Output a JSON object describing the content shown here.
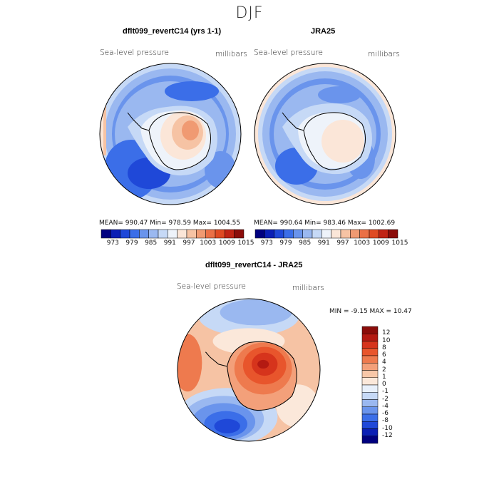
{
  "season_title": "DJF",
  "panels": [
    {
      "title": "dflt099_revertC14 (yrs 1-1)",
      "variable": "Sea-level pressure",
      "units": "millibars",
      "stats": {
        "mean": "990.47",
        "min": "978.59",
        "max": "1004.55"
      },
      "stats_text": "MEAN= 990.47   Min= 978.59   Max= 1004.55"
    },
    {
      "title": "JRA25",
      "variable": "Sea-level pressure",
      "units": "millibars",
      "stats": {
        "mean": "990.64",
        "min": "983.46",
        "max": "1002.69"
      },
      "stats_text": "MEAN= 990.64   Min= 983.46   Max= 1002.69"
    },
    {
      "title": "dflt099_revertC14 - JRA25",
      "variable": "Sea-level pressure",
      "units": "millibars",
      "stats": {
        "min": "-9.15",
        "max": "10.47"
      },
      "stats_text": "MIN =   -9.15  MAX =   10.47"
    }
  ],
  "abs_colorbar": {
    "tick_labels": [
      "973",
      "979",
      "985",
      "991",
      "997",
      "1003",
      "1009",
      "1015"
    ],
    "colors": [
      "#00007f",
      "#0a1fb5",
      "#1f48d8",
      "#3b6ee8",
      "#6a94ec",
      "#9ab8f0",
      "#c6d9f6",
      "#eef3fa",
      "#fbe6d8",
      "#f6c3a4",
      "#f09a72",
      "#ea7046",
      "#df4a22",
      "#c02414",
      "#8b0d0a"
    ]
  },
  "diff_colorbar": {
    "tick_labels": [
      "12",
      "10",
      "8",
      "6",
      "4",
      "2",
      "1",
      "0",
      "-1",
      "-2",
      "-4",
      "-6",
      "-8",
      "-10",
      "-12"
    ],
    "colors": [
      "#8b0d0a",
      "#b41a12",
      "#d6341c",
      "#e8552c",
      "#ee7a4e",
      "#f3a07a",
      "#f7c7a8",
      "#fbe8da",
      "#e8f0fb",
      "#c6d9f6",
      "#9ab8f0",
      "#6a94ec",
      "#3b6ee8",
      "#1f48d8",
      "#0a1fb5",
      "#00007f"
    ]
  }
}
